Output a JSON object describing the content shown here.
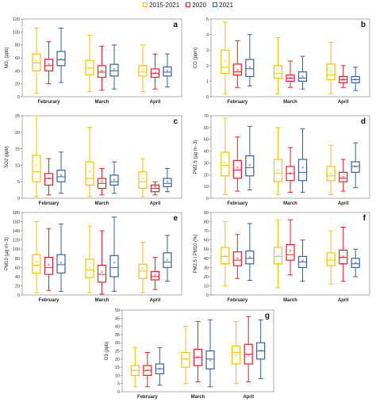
{
  "legend": [
    {
      "label": "2015-2021",
      "color": "#F4C300"
    },
    {
      "label": "2020",
      "color": "#E8202A"
    },
    {
      "label": "2021",
      "color": "#3A5FA0"
    }
  ],
  "chart_data": [
    {
      "panel": "a",
      "type": "box",
      "ylabel": "NO₂ (ppb)",
      "ylim": [
        0,
        120
      ],
      "yticks": [
        0,
        20,
        40,
        60,
        80,
        100,
        120
      ],
      "categories": [
        "Februrary",
        "March",
        "April"
      ],
      "series": [
        {
          "name": "2015-2021",
          "values": [
            {
              "min": 5,
              "q1": 40,
              "median": 52,
              "q3": 66,
              "max": 106,
              "mean": 55
            },
            {
              "min": 8,
              "q1": 34,
              "median": 44,
              "q3": 56,
              "max": 95,
              "mean": 45
            },
            {
              "min": 8,
              "q1": 32,
              "median": 38,
              "q3": 48,
              "max": 80,
              "mean": 41
            }
          ]
        },
        {
          "name": "2020",
          "values": [
            {
              "min": 20,
              "q1": 40,
              "median": 48,
              "q3": 58,
              "max": 85,
              "mean": 50
            },
            {
              "min": 10,
              "q1": 30,
              "median": 38,
              "q3": 48,
              "max": 78,
              "mean": 40
            },
            {
              "min": 12,
              "q1": 30,
              "median": 36,
              "q3": 43,
              "max": 66,
              "mean": 37
            }
          ]
        },
        {
          "name": "2021",
          "values": [
            {
              "min": 22,
              "q1": 48,
              "median": 57,
              "q3": 70,
              "max": 106,
              "mean": 58
            },
            {
              "min": 12,
              "q1": 32,
              "median": 40,
              "q3": 50,
              "max": 80,
              "mean": 42
            },
            {
              "min": 15,
              "q1": 32,
              "median": 38,
              "q3": 46,
              "max": 66,
              "mean": 40
            }
          ]
        }
      ]
    },
    {
      "panel": "b",
      "type": "box",
      "ylabel": "CO (ppm)",
      "ylim": [
        0,
        5
      ],
      "yticks": [
        0,
        1,
        2,
        3,
        4,
        5
      ],
      "categories": [
        "February",
        "March",
        "April"
      ],
      "series": [
        {
          "name": "2015-2021",
          "values": [
            {
              "min": 0.2,
              "q1": 1.5,
              "median": 1.9,
              "q3": 3.0,
              "max": 4.8,
              "mean": 2.3
            },
            {
              "min": 0.2,
              "q1": 1.2,
              "median": 1.5,
              "q3": 2.0,
              "max": 3.8,
              "mean": 1.7
            },
            {
              "min": 0.2,
              "q1": 1.1,
              "median": 1.4,
              "q3": 2.1,
              "max": 3.5,
              "mean": 1.6
            }
          ]
        },
        {
          "name": "2020",
          "values": [
            {
              "min": 0.6,
              "q1": 1.4,
              "median": 1.6,
              "q3": 2.1,
              "max": 3.6,
              "mean": 1.7
            },
            {
              "min": 0.6,
              "q1": 1.0,
              "median": 1.2,
              "q3": 1.4,
              "max": 2.3,
              "mean": 1.2
            },
            {
              "min": 0.6,
              "q1": 0.9,
              "median": 1.1,
              "q3": 1.3,
              "max": 2.0,
              "mean": 1.1
            }
          ]
        },
        {
          "name": "2021",
          "values": [
            {
              "min": 0.7,
              "q1": 1.3,
              "median": 1.8,
              "q3": 2.4,
              "max": 4.0,
              "mean": 1.9
            },
            {
              "min": 0.5,
              "q1": 1.0,
              "median": 1.2,
              "q3": 1.6,
              "max": 2.6,
              "mean": 1.3
            },
            {
              "min": 0.4,
              "q1": 0.9,
              "median": 1.1,
              "q3": 1.3,
              "max": 1.9,
              "mean": 1.1
            }
          ]
        }
      ]
    },
    {
      "panel": "c",
      "type": "box",
      "ylabel": "SO2 (ppb)",
      "ylim": [
        0,
        25
      ],
      "yticks": [
        0,
        5,
        10,
        15,
        20,
        25
      ],
      "categories": [
        "February",
        "March",
        "April"
      ],
      "series": [
        {
          "name": "2015-2021",
          "values": [
            {
              "min": 0.5,
              "q1": 5,
              "median": 8,
              "q3": 13,
              "max": 25,
              "mean": 10
            },
            {
              "min": 0.5,
              "q1": 4,
              "median": 6,
              "q3": 11,
              "max": 21.5,
              "mean": 8
            },
            {
              "min": 0.5,
              "q1": 3,
              "median": 5,
              "q3": 8,
              "max": 12,
              "mean": 6
            }
          ]
        },
        {
          "name": "2020",
          "values": [
            {
              "min": 1,
              "q1": 4,
              "median": 6,
              "q3": 7.5,
              "max": 12,
              "mean": 6
            },
            {
              "min": 1,
              "q1": 3,
              "median": 4.5,
              "q3": 6,
              "max": 9,
              "mean": 5
            },
            {
              "min": 1,
              "q1": 2,
              "median": 3,
              "q3": 4,
              "max": 5,
              "mean": 3.5
            }
          ]
        },
        {
          "name": "2021",
          "values": [
            {
              "min": 1.5,
              "q1": 5,
              "median": 6.5,
              "q3": 8.5,
              "max": 14,
              "mean": 7
            },
            {
              "min": 1.5,
              "q1": 4,
              "median": 5,
              "q3": 7,
              "max": 11,
              "mean": 5.5
            },
            {
              "min": 2,
              "q1": 3.5,
              "median": 4.5,
              "q3": 6,
              "max": 9,
              "mean": 5
            }
          ]
        }
      ]
    },
    {
      "panel": "d",
      "type": "box",
      "ylabel": "PM2.5 (µg m−3)",
      "ylim": [
        0,
        70
      ],
      "yticks": [
        0,
        10,
        20,
        30,
        40,
        50,
        60,
        70
      ],
      "categories": [
        "February",
        "March",
        "April"
      ],
      "series": [
        {
          "name": "2015-2021",
          "values": [
            {
              "min": 3,
              "q1": 19,
              "median": 28,
              "q3": 39,
              "max": 68,
              "mean": 30
            },
            {
              "min": 3,
              "q1": 14,
              "median": 21,
              "q3": 33,
              "max": 60,
              "mean": 24
            },
            {
              "min": 3,
              "q1": 15,
              "median": 19,
              "q3": 27,
              "max": 45,
              "mean": 21
            }
          ]
        },
        {
          "name": "2020",
          "values": [
            {
              "min": 6,
              "q1": 17,
              "median": 24,
              "q3": 32,
              "max": 52,
              "mean": 26
            },
            {
              "min": 5,
              "q1": 15,
              "median": 21,
              "q3": 27,
              "max": 43,
              "mean": 21
            },
            {
              "min": 6,
              "q1": 14,
              "median": 17,
              "q3": 22,
              "max": 33,
              "mean": 18
            }
          ]
        },
        {
          "name": "2021",
          "values": [
            {
              "min": 7,
              "q1": 19,
              "median": 26,
              "q3": 36,
              "max": 61,
              "mean": 28
            },
            {
              "min": 5,
              "q1": 15,
              "median": 22,
              "q3": 33,
              "max": 59,
              "mean": 26
            },
            {
              "min": 9,
              "q1": 22,
              "median": 27,
              "q3": 31,
              "max": 47,
              "mean": 27
            }
          ]
        }
      ]
    },
    {
      "panel": "e",
      "type": "box",
      "ylabel": "PM10 (µg m−3)",
      "ylim": [
        0,
        180
      ],
      "yticks": [
        0,
        20,
        40,
        60,
        80,
        100,
        120,
        140,
        160,
        180
      ],
      "categories": [
        "February",
        "March",
        "April"
      ],
      "series": [
        {
          "name": "2015-2021",
          "values": [
            {
              "min": 5,
              "q1": 48,
              "median": 65,
              "q3": 88,
              "max": 160,
              "mean": 72
            },
            {
              "min": 5,
              "q1": 38,
              "median": 55,
              "q3": 78,
              "max": 150,
              "mean": 60
            },
            {
              "min": 5,
              "q1": 36,
              "median": 52,
              "q3": 67,
              "max": 115,
              "mean": 58
            }
          ]
        },
        {
          "name": "2020",
          "values": [
            {
              "min": 10,
              "q1": 45,
              "median": 60,
              "q3": 82,
              "max": 145,
              "mean": 66
            },
            {
              "min": 2,
              "q1": 28,
              "median": 45,
              "q3": 65,
              "max": 140,
              "mean": 50
            },
            {
              "min": 12,
              "q1": 33,
              "median": 40,
              "q3": 51,
              "max": 82,
              "mean": 43
            }
          ]
        },
        {
          "name": "2021",
          "values": [
            {
              "min": 8,
              "q1": 48,
              "median": 66,
              "q3": 88,
              "max": 155,
              "mean": 70
            },
            {
              "min": 8,
              "q1": 40,
              "median": 60,
              "q3": 86,
              "max": 170,
              "mean": 70
            },
            {
              "min": 30,
              "q1": 60,
              "median": 72,
              "q3": 92,
              "max": 130,
              "mean": 76
            }
          ]
        }
      ]
    },
    {
      "panel": "f",
      "type": "box",
      "ylabel": "PM2.5 / PM10 (%)",
      "ylim": [
        0,
        90
      ],
      "yticks": [
        0,
        10,
        20,
        30,
        40,
        50,
        60,
        70,
        80,
        90
      ],
      "categories": [
        "February",
        "March",
        "April"
      ],
      "series": [
        {
          "name": "2015-2021",
          "values": [
            {
              "min": 10,
              "q1": 34,
              "median": 42,
              "q3": 52,
              "max": 80,
              "mean": 43
            },
            {
              "min": 8,
              "q1": 34,
              "median": 42,
              "q3": 52,
              "max": 82,
              "mean": 43
            },
            {
              "min": 12,
              "q1": 32,
              "median": 38,
              "q3": 46,
              "max": 70,
              "mean": 40
            }
          ]
        },
        {
          "name": "2020",
          "values": [
            {
              "min": 18,
              "q1": 32,
              "median": 38,
              "q3": 47,
              "max": 66,
              "mean": 40
            },
            {
              "min": 22,
              "q1": 38,
              "median": 44,
              "q3": 55,
              "max": 82,
              "mean": 48
            },
            {
              "min": 15,
              "q1": 34,
              "median": 41,
              "q3": 49,
              "max": 74,
              "mean": 42
            }
          ]
        },
        {
          "name": "2021",
          "values": [
            {
              "min": 16,
              "q1": 34,
              "median": 40,
              "q3": 48,
              "max": 78,
              "mean": 41
            },
            {
              "min": 15,
              "q1": 30,
              "median": 36,
              "q3": 42,
              "max": 60,
              "mean": 37
            },
            {
              "min": 20,
              "q1": 30,
              "median": 34,
              "q3": 40,
              "max": 50,
              "mean": 35
            }
          ]
        }
      ]
    },
    {
      "panel": "g",
      "type": "box",
      "ylabel": "O3 (ppb)",
      "ylim": [
        0,
        50
      ],
      "yticks": [
        0,
        5,
        10,
        15,
        20,
        25,
        30,
        35,
        40,
        45,
        50
      ],
      "categories": [
        "February",
        "March",
        "April"
      ],
      "series": [
        {
          "name": "2015-2021",
          "values": [
            {
              "min": 3,
              "q1": 10,
              "median": 13,
              "q3": 16,
              "max": 27,
              "mean": 13
            },
            {
              "min": 5,
              "q1": 15,
              "median": 20,
              "q3": 24,
              "max": 40,
              "mean": 20
            },
            {
              "min": 5,
              "q1": 17,
              "median": 24,
              "q3": 28,
              "max": 43,
              "mean": 22
            }
          ]
        },
        {
          "name": "2020",
          "values": [
            {
              "min": 3,
              "q1": 10,
              "median": 13,
              "q3": 16,
              "max": 24,
              "mean": 13
            },
            {
              "min": 6,
              "q1": 16,
              "median": 21,
              "q3": 26,
              "max": 43,
              "mean": 21
            },
            {
              "min": 6,
              "q1": 17,
              "median": 23,
              "q3": 29,
              "max": 46,
              "mean": 22
            }
          ]
        },
        {
          "name": "2021",
          "values": [
            {
              "min": 4,
              "q1": 11,
              "median": 14,
              "q3": 17,
              "max": 27,
              "mean": 14
            },
            {
              "min": 3,
              "q1": 14,
              "median": 20,
              "q3": 25,
              "max": 44,
              "mean": 19
            },
            {
              "min": 8,
              "q1": 20,
              "median": 25,
              "q3": 30,
              "max": 44,
              "mean": 25
            }
          ]
        }
      ]
    }
  ]
}
